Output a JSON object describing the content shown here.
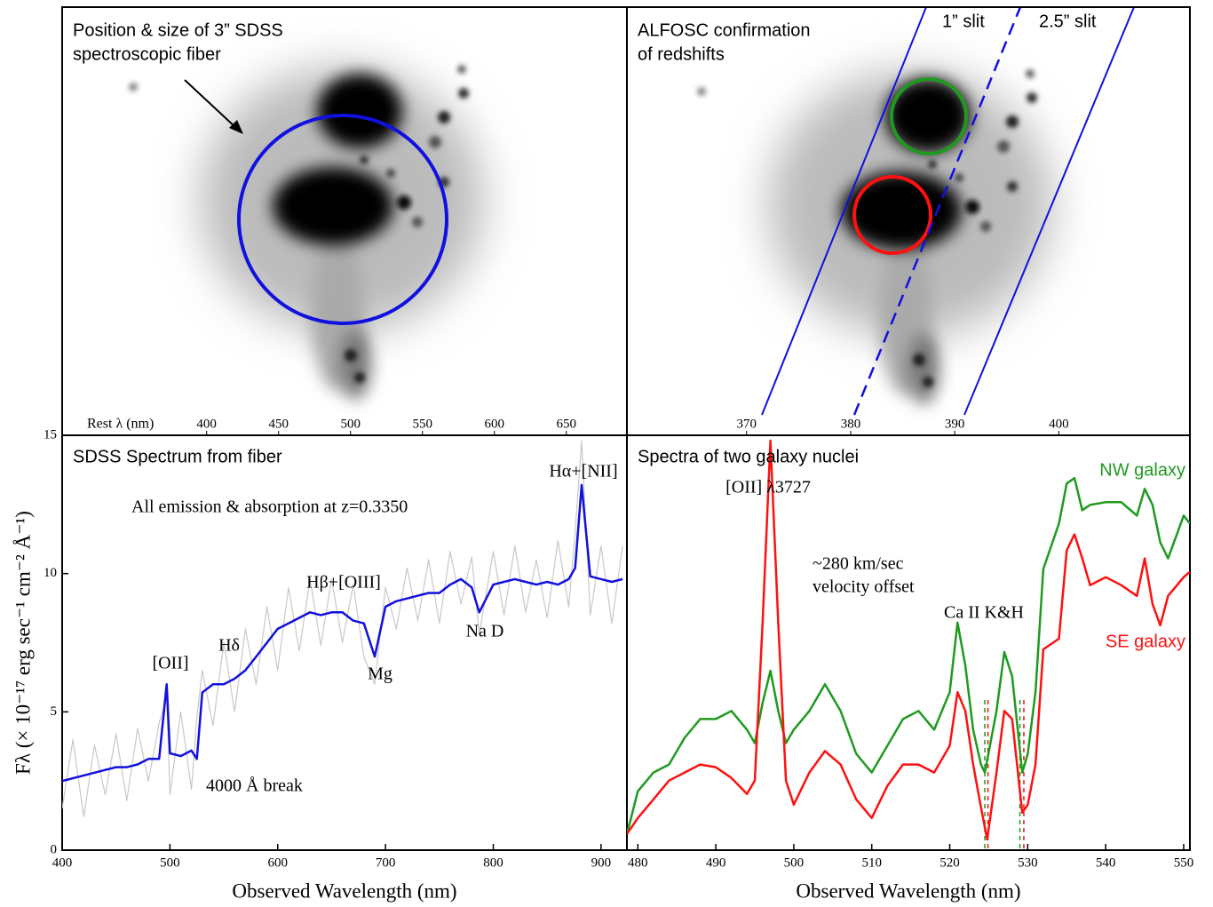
{
  "top_panels": [
    {
      "lines": [
        "Position & size of 3” SDSS",
        "spectroscopic fiber"
      ]
    },
    {
      "lines": [
        "ALFOSC confirmation",
        "of redshifts"
      ],
      "slit_labels": [
        "1” slit",
        "2.5” slit"
      ]
    }
  ],
  "chart_data": [
    {
      "type": "line",
      "title": "SDSS Spectrum from fiber",
      "annotations": [
        "All emission & absorption at z=0.3350",
        "[OII]",
        "Hδ",
        "Hβ+[OIII]",
        "Mg",
        "Na D",
        "Hα+[NII]",
        "4000 Å break"
      ],
      "xlabel": "Observed Wavelength (nm)",
      "ylabel": "Fλ (× 10⁻¹⁷ erg sec⁻¹ cm⁻² Å⁻¹)",
      "x2label": "Rest λ (nm)",
      "xlim": [
        400,
        924
      ],
      "xticks": [
        400,
        500,
        600,
        700,
        800,
        900
      ],
      "x2lim": [
        299.6,
        692.1
      ],
      "x2ticks": [
        400,
        450,
        500,
        550,
        600,
        650
      ],
      "ylim": [
        0,
        15
      ],
      "yticks": [
        0,
        5,
        10,
        15
      ],
      "series": [
        {
          "color": "#c8c8c8",
          "x": [
            400,
            410,
            420,
            430,
            440,
            450,
            460,
            470,
            480,
            490,
            497,
            500,
            510,
            520,
            525,
            530,
            540,
            550,
            560,
            570,
            580,
            590,
            600,
            610,
            620,
            630,
            640,
            650,
            660,
            670,
            680,
            690,
            700,
            710,
            720,
            730,
            740,
            750,
            760,
            770,
            780,
            787,
            800,
            810,
            820,
            830,
            840,
            850,
            860,
            870,
            876,
            882,
            890,
            900,
            910,
            920
          ],
          "values": [
            1.5,
            4.0,
            1.2,
            3.8,
            2.0,
            4.2,
            1.8,
            4.4,
            2.5,
            4.6,
            5.5,
            2.0,
            5.0,
            2.2,
            4.8,
            6.5,
            4.5,
            7.5,
            5.0,
            8.0,
            6.0,
            8.8,
            6.5,
            9.5,
            7.2,
            9.8,
            7.4,
            9.8,
            7.5,
            9.6,
            7.0,
            6.0,
            9.5,
            8.0,
            10.2,
            8.3,
            10.5,
            8.2,
            10.8,
            8.9,
            10.6,
            7.8,
            10.8,
            8.5,
            11.0,
            8.6,
            10.5,
            8.4,
            11.2,
            8.8,
            11.5,
            14.8,
            8.5,
            11.0,
            8.2,
            11.0
          ]
        },
        {
          "color": "#1010e0",
          "x": [
            400,
            410,
            420,
            430,
            440,
            450,
            460,
            470,
            480,
            490,
            497,
            500,
            510,
            520,
            525,
            530,
            540,
            550,
            560,
            570,
            580,
            590,
            600,
            610,
            620,
            630,
            640,
            650,
            660,
            670,
            680,
            690,
            700,
            710,
            720,
            730,
            740,
            750,
            760,
            770,
            780,
            787,
            800,
            810,
            820,
            830,
            840,
            850,
            860,
            870,
            876,
            882,
            890,
            900,
            910,
            920
          ],
          "values": [
            2.5,
            2.6,
            2.7,
            2.8,
            2.9,
            3.0,
            3.0,
            3.1,
            3.3,
            3.3,
            6.0,
            3.5,
            3.4,
            3.6,
            3.3,
            5.7,
            6.0,
            6.0,
            6.2,
            6.5,
            7.0,
            7.5,
            8.0,
            8.2,
            8.4,
            8.6,
            8.5,
            8.6,
            8.6,
            8.3,
            8.2,
            7.0,
            8.8,
            9.0,
            9.1,
            9.2,
            9.3,
            9.3,
            9.6,
            9.8,
            9.5,
            8.6,
            9.6,
            9.7,
            9.8,
            9.7,
            9.6,
            9.7,
            9.6,
            9.8,
            10.2,
            13.2,
            9.9,
            9.8,
            9.7,
            9.8
          ]
        }
      ]
    },
    {
      "type": "line",
      "title": "Spectra of two galaxy nuclei",
      "annotations": [
        "[OII] λ3727",
        "~280 km/sec",
        "velocity offset",
        "Ca II K&H"
      ],
      "xlabel": "Observed Wavelength (nm)",
      "xlim": [
        478.6,
        550.8
      ],
      "xticks": [
        480,
        490,
        500,
        510,
        520,
        530,
        540,
        550
      ],
      "x2lim": [
        358.5,
        412.6
      ],
      "x2ticks": [
        370,
        380,
        390,
        400
      ],
      "ylim": [
        0,
        15.5
      ],
      "kh_lines": [
        {
          "color": "#1f9a1f",
          "x": [
            524.5,
            529.0
          ]
        },
        {
          "color": "#ff1010",
          "x": [
            524.9,
            529.5
          ]
        }
      ],
      "series": [
        {
          "name": "NW galaxy",
          "color": "#1f9a1f",
          "x": [
            478.6,
            480,
            482,
            484,
            486,
            488,
            490,
            492,
            494,
            495,
            496,
            497,
            498,
            499,
            500,
            502,
            504,
            506,
            508,
            510,
            512,
            514,
            516,
            518,
            520,
            521,
            522,
            523,
            524,
            524.5,
            526,
            527,
            528,
            529.3,
            530,
            531,
            532,
            534,
            535,
            536,
            537,
            538,
            540,
            542,
            544,
            545,
            546,
            547,
            548,
            550,
            550.8
          ],
          "values": [
            0.6,
            2.2,
            2.9,
            3.2,
            4.2,
            4.9,
            4.9,
            5.2,
            4.5,
            4.0,
            5.5,
            6.7,
            5.2,
            4.0,
            4.5,
            5.2,
            6.2,
            5.2,
            3.6,
            2.9,
            3.9,
            4.9,
            5.2,
            4.5,
            5.9,
            8.5,
            6.9,
            4.5,
            3.2,
            2.9,
            5.2,
            7.4,
            6.5,
            2.9,
            3.6,
            5.9,
            10.5,
            12.2,
            13.7,
            13.9,
            12.7,
            12.9,
            13.0,
            13.0,
            12.5,
            13.5,
            12.9,
            11.5,
            10.9,
            12.5,
            12.2
          ]
        },
        {
          "name": "SE galaxy",
          "color": "#ff1010",
          "x": [
            478.6,
            480,
            482,
            484,
            486,
            488,
            490,
            492,
            494,
            495,
            496,
            497,
            498,
            499,
            500,
            502,
            504,
            506,
            508,
            510,
            512,
            514,
            516,
            518,
            520,
            521,
            522,
            523,
            524,
            524.8,
            526,
            527,
            528,
            529.3,
            530,
            531,
            532,
            534,
            535,
            536,
            537,
            538,
            540,
            542,
            544,
            545,
            546,
            547,
            548,
            550,
            550.8
          ],
          "values": [
            0.6,
            1.2,
            1.9,
            2.6,
            2.9,
            3.2,
            3.1,
            2.7,
            2.1,
            2.6,
            8.5,
            15.3,
            8.5,
            2.6,
            1.7,
            2.9,
            3.7,
            3.2,
            1.9,
            1.2,
            2.4,
            3.2,
            3.2,
            2.9,
            3.9,
            5.9,
            5.2,
            3.2,
            1.6,
            0.4,
            2.9,
            5.2,
            4.9,
            1.4,
            1.7,
            3.2,
            7.5,
            7.9,
            11.2,
            11.8,
            10.9,
            9.9,
            10.2,
            9.9,
            9.5,
            10.9,
            9.2,
            8.4,
            9.5,
            10.2,
            10.4
          ]
        }
      ]
    }
  ]
}
